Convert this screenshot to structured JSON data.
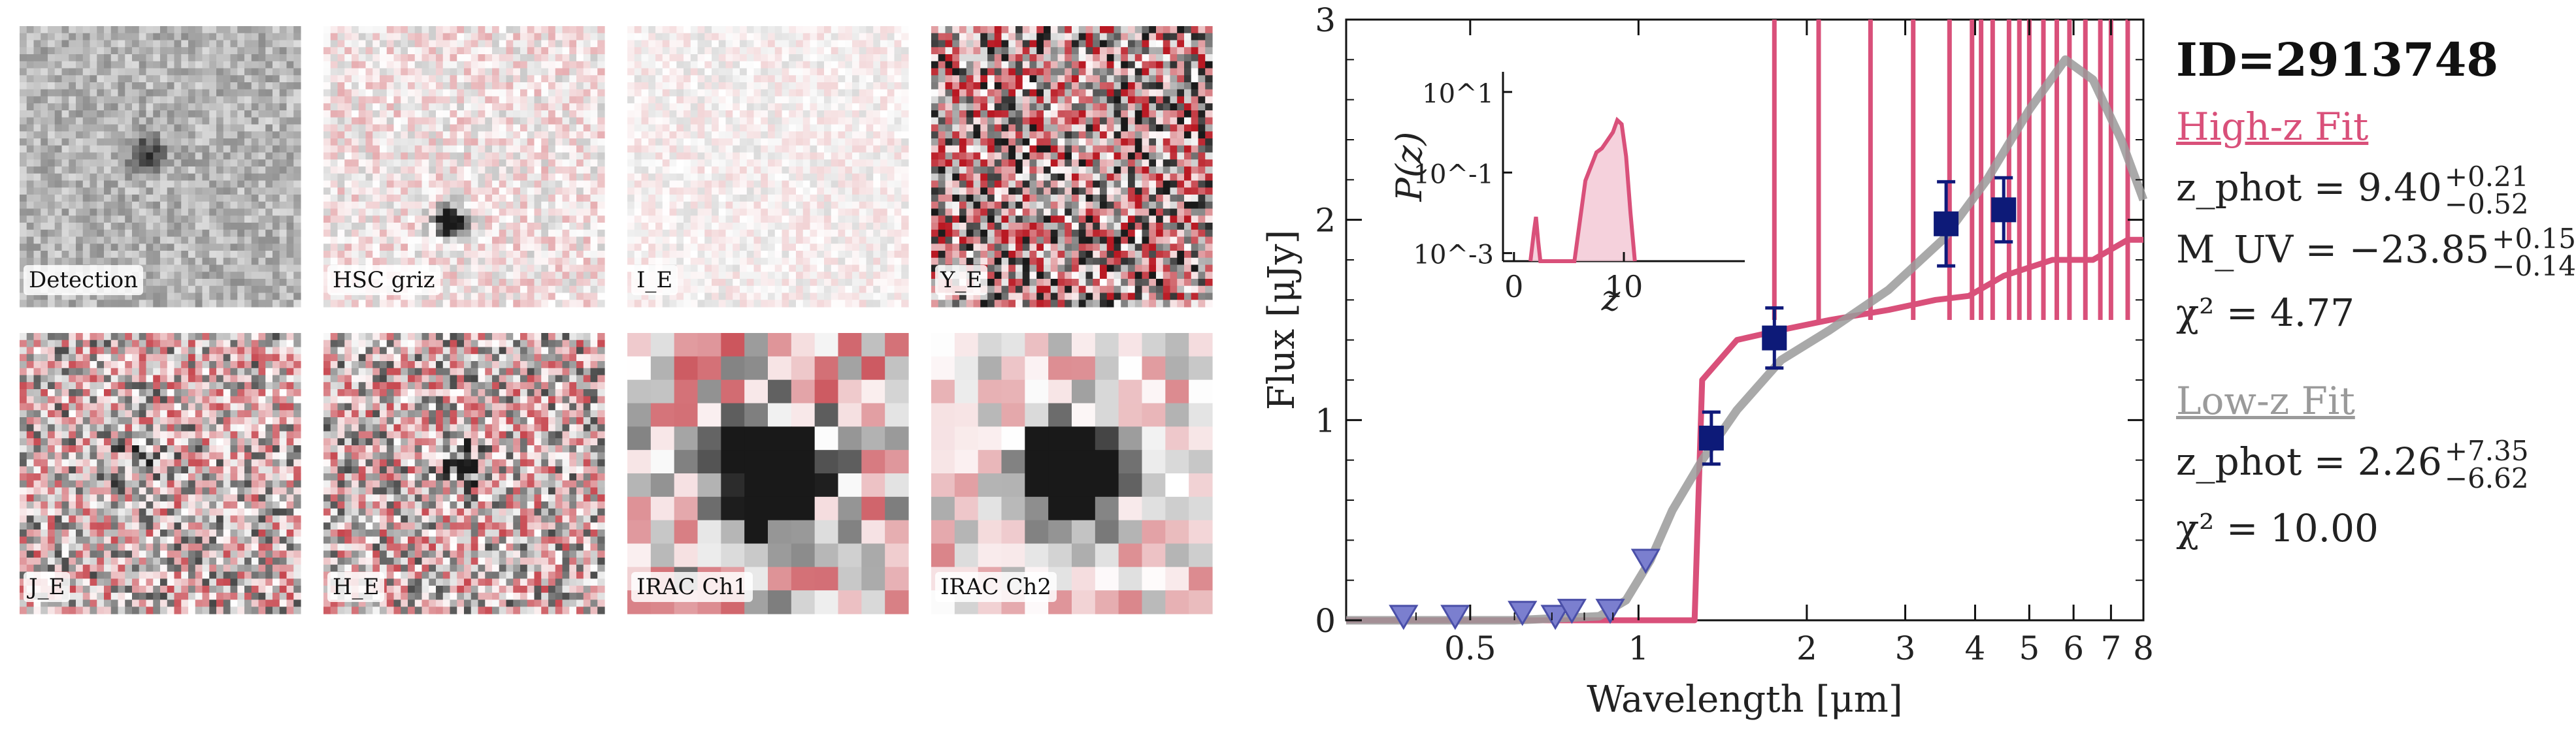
{
  "stamps": [
    {
      "label": "Detection",
      "cmap": "gray"
    },
    {
      "label": "HSC griz",
      "cmap": "red"
    },
    {
      "label": "I_E",
      "cmap": "red"
    },
    {
      "label": "Y_E",
      "cmap": "red"
    },
    {
      "label": "J_E",
      "cmap": "red"
    },
    {
      "label": "H_E",
      "cmap": "red"
    },
    {
      "label": "IRAC Ch1",
      "cmap": "red"
    },
    {
      "label": "IRAC Ch2",
      "cmap": "red"
    }
  ],
  "info": {
    "id": "ID=2913748",
    "high_title": "High-z Fit",
    "high_zphot": "z_phot = 9.40",
    "high_zphot_sup": "+0.21",
    "high_zphot_sub": "−0.52",
    "high_muv": "M_UV = −23.85",
    "high_muv_sup": "+0.15",
    "high_muv_sub": "−0.14",
    "high_chi2": "χ² = 4.77",
    "low_title": "Low-z Fit",
    "low_zphot": "z_phot = 2.26",
    "low_zphot_sup": "+7.35",
    "low_zphot_sub": "−6.62",
    "low_chi2": "χ² = 10.00",
    "high_color": "#d9507a",
    "low_color": "#9a9a9a"
  },
  "chart_data": {
    "type": "line",
    "xlabel": "Wavelength [μm]",
    "ylabel": "Flux [μJy]",
    "xscale": "log",
    "xlim": [
      0.3,
      8
    ],
    "ylim": [
      0,
      3
    ],
    "xticks": [
      0.5,
      1,
      2,
      3,
      4,
      5,
      6,
      7,
      8
    ],
    "xtick_labels": [
      "0.5",
      "1",
      "2",
      "3",
      "4",
      "5",
      "6",
      "7",
      "8"
    ],
    "yticks": [
      0,
      1,
      2,
      3
    ],
    "series": [
      {
        "name": "High-z Fit",
        "color": "#d9507a",
        "x": [
          0.3,
          1.0,
          1.2,
          1.26,
          1.3,
          1.5,
          1.8,
          2.2,
          2.8,
          3.4,
          3.9,
          4.5,
          5.5,
          6.5,
          7.5,
          8.0
        ],
        "y": [
          0.0,
          0.0,
          0.0,
          0.0,
          1.2,
          1.4,
          1.45,
          1.5,
          1.55,
          1.6,
          1.62,
          1.72,
          1.8,
          1.8,
          1.9,
          1.9
        ],
        "emission_lines_x": [
          1.75,
          2.1,
          2.6,
          3.1,
          3.6,
          3.95,
          4.1,
          4.3,
          4.6,
          4.8,
          5.0,
          5.3,
          5.6,
          5.9,
          6.3,
          6.7,
          7.0,
          7.5
        ]
      },
      {
        "name": "Low-z Fit",
        "color": "#9a9a9a",
        "x": [
          0.3,
          0.6,
          0.85,
          0.95,
          1.05,
          1.15,
          1.3,
          1.5,
          1.8,
          2.2,
          2.8,
          3.5,
          4.2,
          5.0,
          5.8,
          6.5,
          7.3,
          8.0
        ],
        "y": [
          0.0,
          0.0,
          0.02,
          0.1,
          0.3,
          0.55,
          0.8,
          1.05,
          1.3,
          1.45,
          1.65,
          1.9,
          2.2,
          2.55,
          2.8,
          2.7,
          2.4,
          2.1
        ]
      }
    ],
    "detections": [
      {
        "x": 1.35,
        "y": 0.91,
        "yerr": 0.13
      },
      {
        "x": 1.75,
        "y": 1.41,
        "yerr": 0.15
      },
      {
        "x": 3.55,
        "y": 1.98,
        "yerr": 0.21
      },
      {
        "x": 4.5,
        "y": 2.05,
        "yerr": 0.16
      }
    ],
    "upper_limits": [
      {
        "x": 0.38,
        "y": 0.02
      },
      {
        "x": 0.47,
        "y": 0.02
      },
      {
        "x": 0.62,
        "y": 0.04
      },
      {
        "x": 0.71,
        "y": 0.02
      },
      {
        "x": 0.76,
        "y": 0.05
      },
      {
        "x": 0.89,
        "y": 0.05
      },
      {
        "x": 1.03,
        "y": 0.3
      }
    ],
    "inset": {
      "xlabel": "z",
      "ylabel": "P(z)",
      "xticks": [
        0,
        10
      ],
      "ytick_labels": [
        "10^-3",
        "10^-1",
        "10^1"
      ],
      "xlim": [
        -1,
        21
      ],
      "ylog_lim": [
        -3.2,
        1.5
      ],
      "z": [
        1.5,
        1.8,
        2.0,
        2.2,
        2.4,
        2.6,
        5.5,
        6.5,
        7.5,
        8.0,
        8.5,
        9.0,
        9.4,
        9.8,
        10.2,
        10.6,
        11.0
      ],
      "logp": [
        -3.2,
        -2.5,
        -2.1,
        -2.7,
        -3.2,
        -3.2,
        -3.2,
        -1.2,
        -0.5,
        -0.4,
        -0.2,
        0.0,
        0.3,
        0.2,
        -0.6,
        -2.0,
        -3.2
      ]
    }
  }
}
